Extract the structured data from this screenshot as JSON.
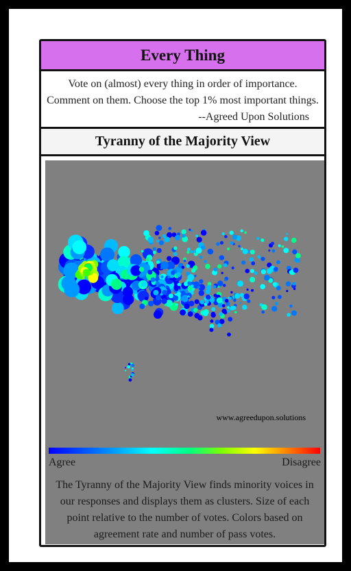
{
  "card": {
    "title": "Every Thing",
    "description": "Vote on (almost) every thing in order of importance. Comment on them. Choose the top 1% most important things.",
    "attribution": "--Agreed Upon Solutions"
  },
  "view": {
    "title": "Tyranny of the Majority View",
    "watermark": "www.agreedupon.solutions",
    "scale": {
      "left_label": "Agree",
      "right_label": "Disagree"
    },
    "caption": "The Tyranny of the Majority View finds minority voices in our responses and displays them as clusters. Size of each point relative to the number of votes. Colors based on agreement rate and number of pass votes."
  },
  "colors": {
    "title_bar": "#d670ec",
    "panel_background": "#808080",
    "frame": "#000000",
    "gradient": [
      "#0000ff",
      "#0080ff",
      "#00ffff",
      "#00ff80",
      "#80ff00",
      "#ffff00",
      "#ff8000",
      "#ff0000"
    ]
  }
}
